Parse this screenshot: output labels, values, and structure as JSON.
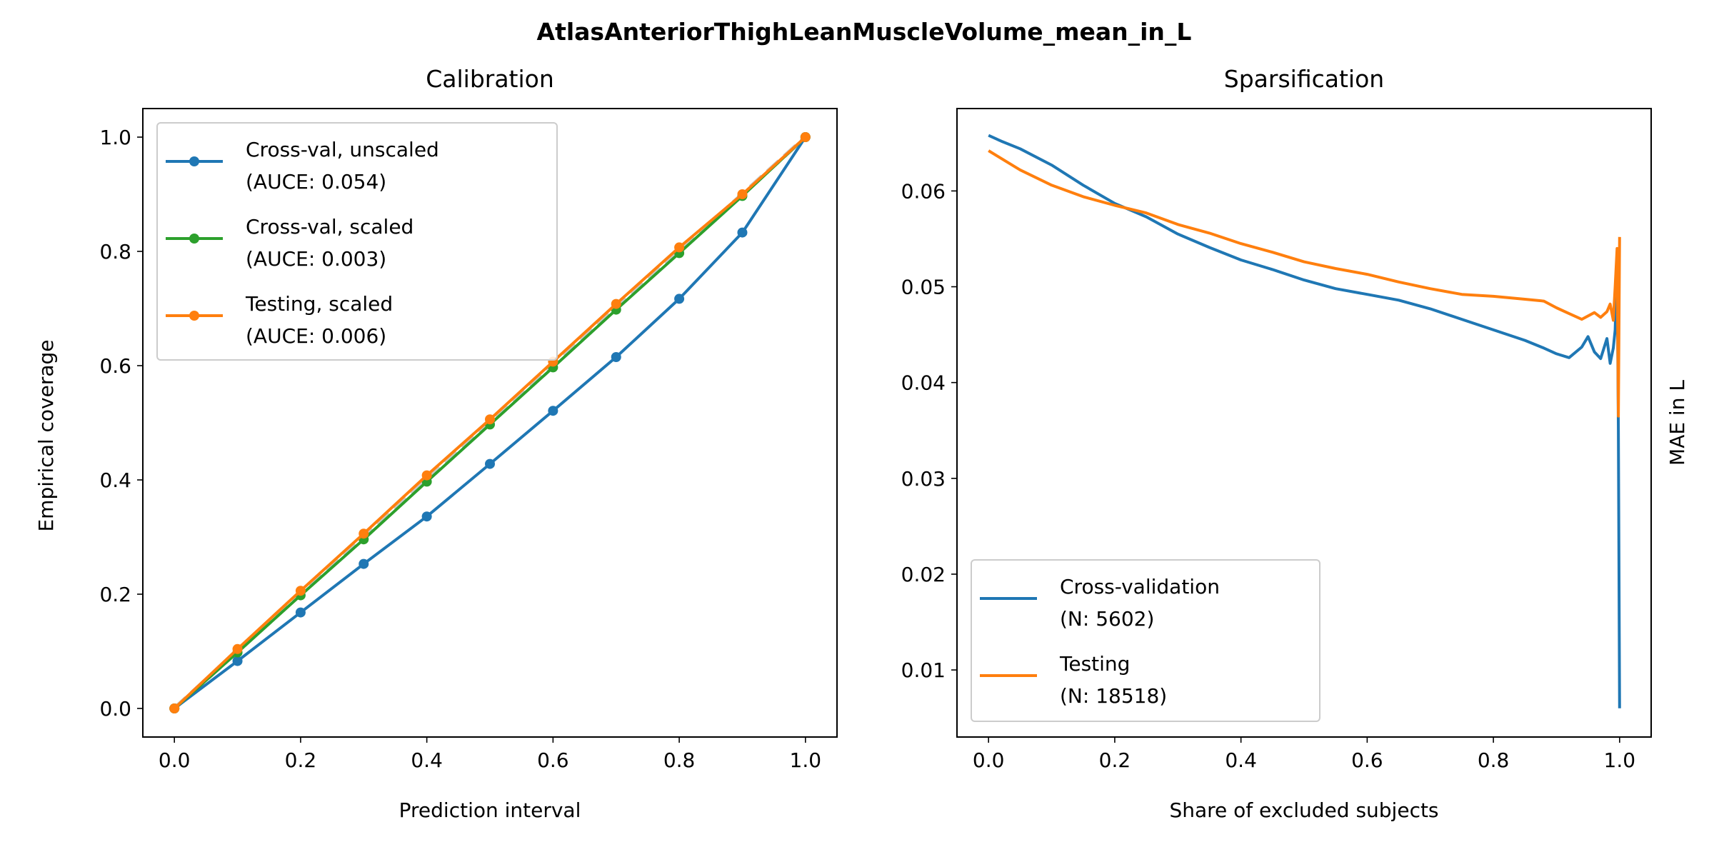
{
  "figure": {
    "title": "AtlasAnteriorThighLeanMuscleVolume_mean_in_L"
  },
  "chart_data": [
    {
      "type": "line",
      "title": "Calibration",
      "xlabel": "Prediction interval",
      "ylabel": "Empirical coverage",
      "xlim": [
        -0.05,
        1.05
      ],
      "ylim": [
        -0.05,
        1.05
      ],
      "xticks": [
        "0.0",
        "0.2",
        "0.4",
        "0.6",
        "0.8",
        "1.0"
      ],
      "yticks": [
        "0.0",
        "0.2",
        "0.4",
        "0.6",
        "0.8",
        "1.0"
      ],
      "grid": false,
      "legend_position": "upper-left",
      "reference_line": {
        "style": "dashed",
        "color": "#c8c8c8",
        "x": [
          0,
          1
        ],
        "y": [
          0,
          1
        ]
      },
      "x": [
        0.0,
        0.1,
        0.2,
        0.3,
        0.4,
        0.5,
        0.6,
        0.7,
        0.8,
        0.9,
        1.0
      ],
      "series": [
        {
          "name": "Cross-val, unscaled",
          "name_line2": "(AUCE: 0.054)",
          "color": "#1f77b4",
          "values": [
            0.0,
            0.083,
            0.168,
            0.253,
            0.336,
            0.428,
            0.521,
            0.615,
            0.717,
            0.833,
            1.0
          ]
        },
        {
          "name": "Cross-val, scaled",
          "name_line2": "(AUCE: 0.003)",
          "color": "#2ca02c",
          "values": [
            0.0,
            0.098,
            0.198,
            0.296,
            0.397,
            0.497,
            0.597,
            0.698,
            0.797,
            0.897,
            1.0
          ]
        },
        {
          "name": "Testing, scaled",
          "name_line2": "(AUCE: 0.006)",
          "color": "#ff7f0e",
          "values": [
            0.0,
            0.104,
            0.206,
            0.306,
            0.408,
            0.506,
            0.607,
            0.708,
            0.807,
            0.9,
            1.0
          ]
        }
      ]
    },
    {
      "type": "line",
      "title": "Sparsification",
      "xlabel": "Share of excluded subjects",
      "ylabel": "MAE in L",
      "ylabel_position": "right",
      "xlim": [
        -0.05,
        1.05
      ],
      "ylim": [
        0.003,
        0.0686
      ],
      "xticks": [
        "0.0",
        "0.2",
        "0.4",
        "0.6",
        "0.8",
        "1.0"
      ],
      "yticks": [
        "0.01",
        "0.02",
        "0.03",
        "0.04",
        "0.05",
        "0.06"
      ],
      "grid": false,
      "legend_position": "lower-left",
      "series": [
        {
          "name": "Cross-validation",
          "name_line2": "(N: 5602)",
          "color": "#1f77b4",
          "x": [
            0.0,
            0.02,
            0.05,
            0.1,
            0.15,
            0.2,
            0.25,
            0.3,
            0.35,
            0.4,
            0.45,
            0.5,
            0.55,
            0.6,
            0.65,
            0.7,
            0.75,
            0.8,
            0.85,
            0.88,
            0.9,
            0.92,
            0.94,
            0.95,
            0.96,
            0.97,
            0.98,
            0.985,
            0.99,
            0.993,
            0.996,
            0.998,
            1.0
          ],
          "values": [
            0.0658,
            0.0652,
            0.0644,
            0.0627,
            0.0606,
            0.0587,
            0.0573,
            0.0555,
            0.0541,
            0.0528,
            0.0518,
            0.0507,
            0.0498,
            0.0492,
            0.0486,
            0.0477,
            0.0466,
            0.0455,
            0.0444,
            0.0436,
            0.043,
            0.0426,
            0.0437,
            0.0448,
            0.0432,
            0.0425,
            0.0446,
            0.042,
            0.0436,
            0.0455,
            0.053,
            0.035,
            0.006
          ]
        },
        {
          "name": "Testing",
          "name_line2": "(N: 18518)",
          "color": "#ff7f0e",
          "x": [
            0.0,
            0.02,
            0.05,
            0.1,
            0.15,
            0.2,
            0.25,
            0.3,
            0.35,
            0.4,
            0.45,
            0.5,
            0.55,
            0.6,
            0.65,
            0.7,
            0.75,
            0.8,
            0.85,
            0.88,
            0.9,
            0.92,
            0.94,
            0.96,
            0.97,
            0.98,
            0.985,
            0.99,
            0.993,
            0.996,
            0.998,
            1.0
          ],
          "values": [
            0.0642,
            0.0634,
            0.0622,
            0.0606,
            0.0594,
            0.0585,
            0.0577,
            0.0565,
            0.0556,
            0.0545,
            0.0536,
            0.0526,
            0.0519,
            0.0513,
            0.0505,
            0.0498,
            0.0492,
            0.049,
            0.0487,
            0.0485,
            0.0478,
            0.0472,
            0.0466,
            0.0473,
            0.0468,
            0.0474,
            0.0482,
            0.0465,
            0.05,
            0.054,
            0.0365,
            0.0552
          ]
        }
      ]
    }
  ]
}
